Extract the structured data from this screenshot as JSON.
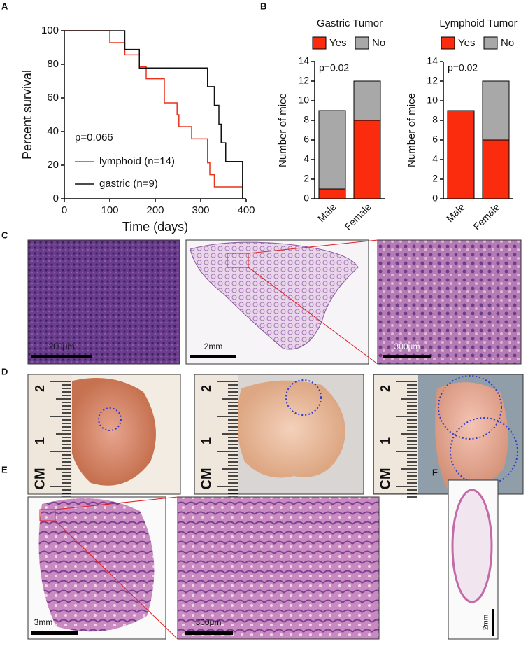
{
  "panels": {
    "labels": [
      "A",
      "B",
      "C",
      "D",
      "E",
      "F"
    ]
  },
  "chart_data": [
    {
      "type": "step",
      "xlabel": "Time (days)",
      "ylabel": "Percent survival",
      "annotation": "p=0.066",
      "xlim": [
        0,
        400
      ],
      "xticks": [
        0,
        100,
        200,
        300,
        400
      ],
      "ylim": [
        0,
        100
      ],
      "yticks": [
        0,
        20,
        40,
        60,
        80,
        100
      ],
      "series": [
        {
          "name": "lymphoid (n=14)",
          "color": "#e8321e",
          "x": [
            0,
            100,
            133,
            165,
            180,
            220,
            248,
            252,
            280,
            315,
            320,
            330,
            392
          ],
          "values": [
            100,
            92.9,
            85.7,
            78.6,
            71.4,
            57.1,
            50,
            42.9,
            35.7,
            21.4,
            14.3,
            7.1,
            7.1
          ]
        },
        {
          "name": "gastric (n=9)",
          "color": "#111111",
          "x": [
            0,
            133,
            165,
            315,
            330,
            340,
            345,
            355,
            392
          ],
          "values": [
            100,
            88.9,
            77.8,
            66.7,
            55.6,
            44.4,
            33.3,
            22.2,
            0
          ]
        }
      ]
    },
    {
      "type": "stacked_bar",
      "title": "Gastric Tumor",
      "ylabel": "Number of mice",
      "annotation": "p=0.02",
      "categories": [
        "Male",
        "Female"
      ],
      "ylim": [
        0,
        14
      ],
      "yticks": [
        0,
        2,
        4,
        6,
        8,
        10,
        12,
        14
      ],
      "series": [
        {
          "name": "Yes",
          "color": "#fb2c0e",
          "values": [
            1,
            8
          ]
        },
        {
          "name": "No",
          "color": "#a8a8a8",
          "values": [
            8,
            4
          ]
        }
      ]
    },
    {
      "type": "stacked_bar",
      "title": "Lymphoid Tumor",
      "ylabel": "Number of mice",
      "annotation": "p=0.02",
      "categories": [
        "Male",
        "Female"
      ],
      "ylim": [
        0,
        14
      ],
      "yticks": [
        0,
        2,
        4,
        6,
        8,
        10,
        12,
        14
      ],
      "series": [
        {
          "name": "Yes",
          "color": "#fb2c0e",
          "values": [
            9,
            6
          ]
        },
        {
          "name": "No",
          "color": "#a8a8a8",
          "values": [
            0,
            6
          ]
        }
      ]
    }
  ],
  "images": {
    "c": [
      "200μm",
      "2mm",
      "300μm"
    ],
    "d": [
      [
        "2",
        "1",
        "CM"
      ],
      [
        "2",
        "1",
        "CM"
      ],
      [
        "2",
        "1",
        "CM"
      ]
    ],
    "e": [
      "3mm",
      "300μm"
    ],
    "f": "2mm"
  }
}
